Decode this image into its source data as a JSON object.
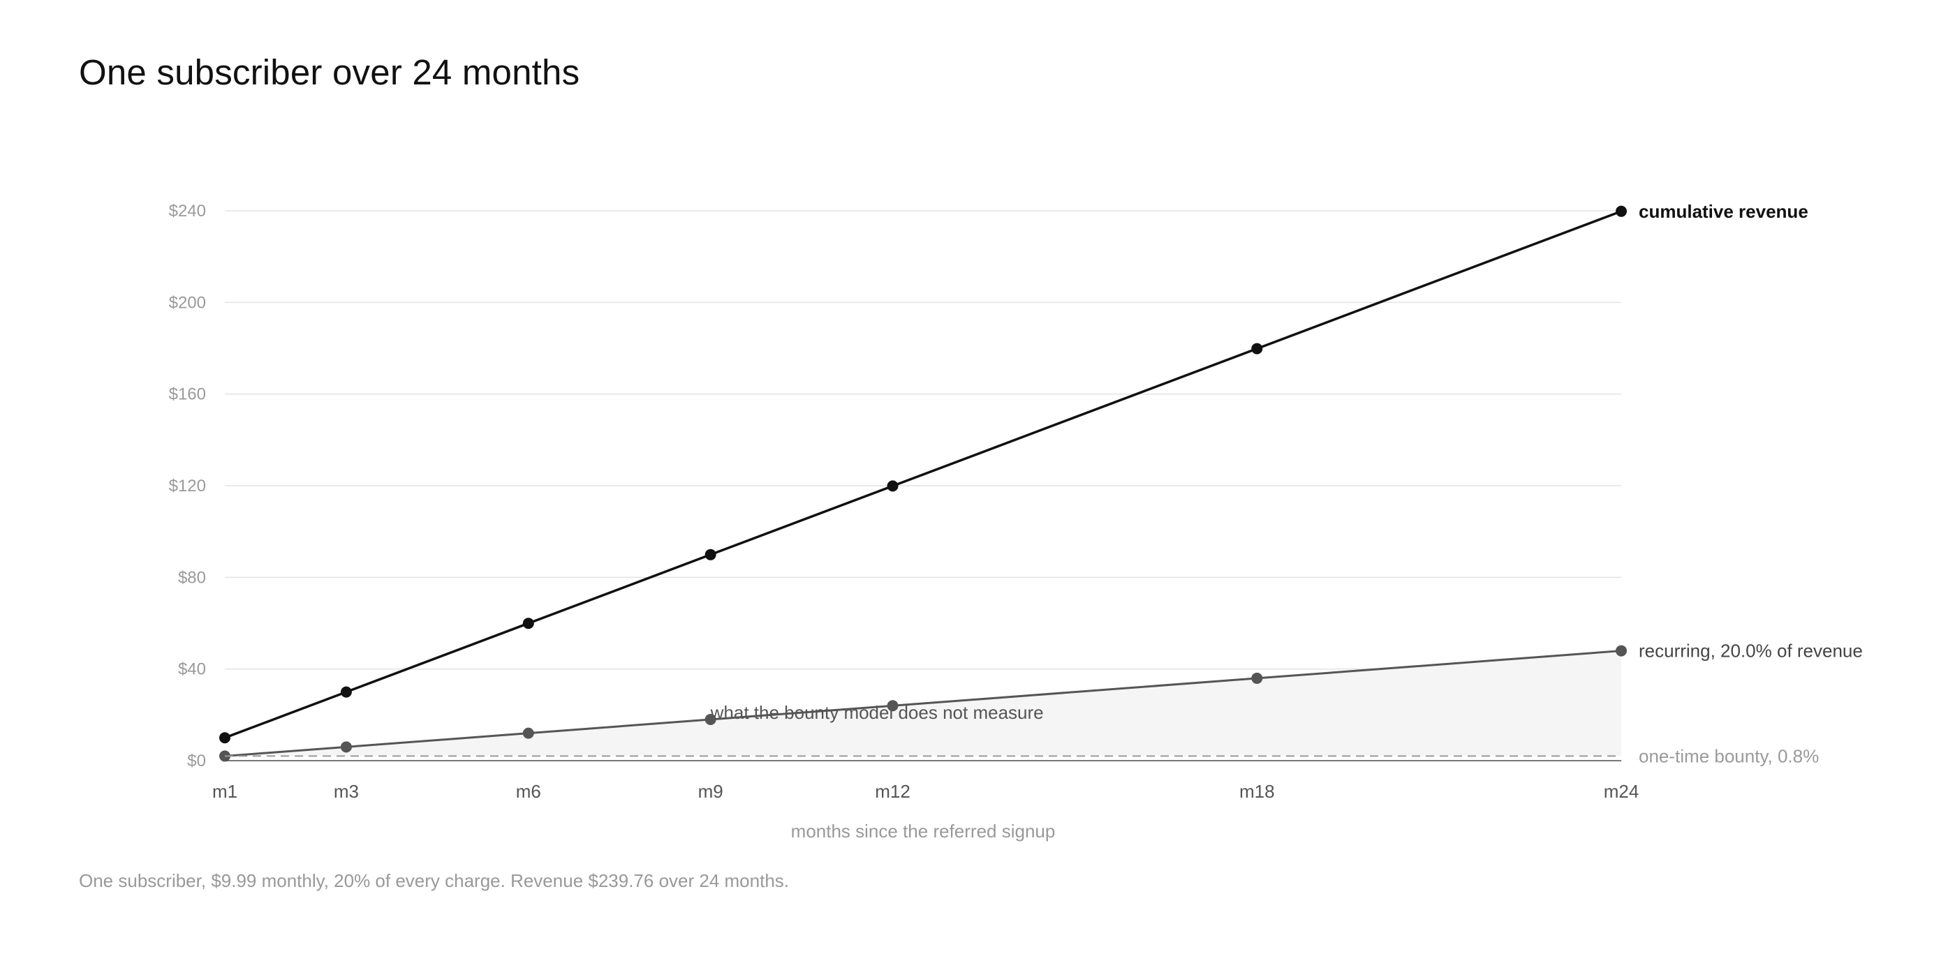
{
  "title": "One subscriber over 24 months",
  "caption": "One subscriber, $9.99 monthly, 20% of every charge. Revenue $239.76 over 24 months.",
  "colors": {
    "cumulative": "#111111",
    "recurring": "#555555",
    "bounty": "#9a9a9a",
    "grid": "#e3e3e3",
    "fill": "#f5f5f5"
  },
  "chart_data": {
    "type": "line",
    "title": "One subscriber over 24 months",
    "xlabel": "months since the referred signup",
    "ylabel": "",
    "x": [
      1,
      3,
      6,
      9,
      12,
      18,
      24
    ],
    "x_tick_labels": [
      "m1",
      "m3",
      "m6",
      "m9",
      "m12",
      "m18",
      "m24"
    ],
    "xlim": [
      1,
      24
    ],
    "ylim": [
      0,
      240
    ],
    "y_ticks": [
      0,
      40,
      80,
      120,
      160,
      200,
      240
    ],
    "y_tick_labels": [
      "$0",
      "$40",
      "$80",
      "$120",
      "$160",
      "$200",
      "$240"
    ],
    "grid": true,
    "series": [
      {
        "key": "cumulative",
        "name": "cumulative revenue",
        "values": [
          9.99,
          29.97,
          59.94,
          89.91,
          119.88,
          179.82,
          239.76
        ]
      },
      {
        "key": "recurring",
        "name": "recurring, 20.0% of revenue",
        "values": [
          2.0,
          5.99,
          11.99,
          17.98,
          23.98,
          35.96,
          47.95
        ]
      },
      {
        "key": "bounty",
        "name": "one-time bounty, 0.8%",
        "style": "dashed",
        "values": [
          2.0,
          2.0,
          2.0,
          2.0,
          2.0,
          2.0,
          2.0
        ]
      }
    ],
    "annotations": [
      {
        "text": "what the bounty model does not measure",
        "x": 9,
        "y": 21
      }
    ]
  }
}
